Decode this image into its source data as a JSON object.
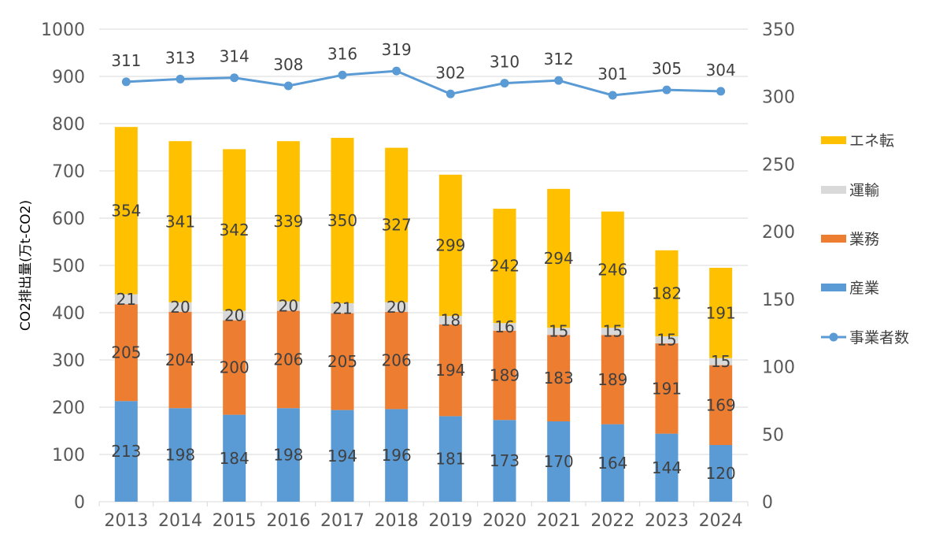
{
  "chart_data": {
    "type": "bar",
    "stacked": true,
    "categories": [
      "2013",
      "2014",
      "2015",
      "2016",
      "2017",
      "2018",
      "2019",
      "2020",
      "2021",
      "2022",
      "2023",
      "2024"
    ],
    "series": [
      {
        "name": "産業",
        "axis": "left",
        "color": "#5b9bd5",
        "values": [
          213,
          198,
          184,
          198,
          194,
          196,
          181,
          173,
          170,
          164,
          144,
          120
        ]
      },
      {
        "name": "業務",
        "axis": "left",
        "color": "#ed7d31",
        "values": [
          205,
          204,
          200,
          206,
          205,
          206,
          194,
          189,
          183,
          189,
          191,
          169
        ]
      },
      {
        "name": "運輸",
        "axis": "left",
        "color": "#d9d9d9",
        "values": [
          21,
          20,
          20,
          20,
          21,
          20,
          18,
          16,
          15,
          15,
          15,
          15
        ]
      },
      {
        "name": "エネ転",
        "axis": "left",
        "color": "#ffc000",
        "values": [
          354,
          341,
          342,
          339,
          350,
          327,
          299,
          242,
          294,
          246,
          182,
          191
        ]
      }
    ],
    "line_series": {
      "name": "事業者数",
      "axis": "right",
      "color": "#5b9bd5",
      "type": "line",
      "values": [
        311,
        313,
        314,
        308,
        316,
        319,
        302,
        310,
        312,
        301,
        305,
        304
      ]
    },
    "ylabel": "CO2排出量(万t-CO2)",
    "ylim": [
      0,
      1000
    ],
    "y_ticks": [
      "1000",
      "900",
      "800",
      "700",
      "600",
      "500",
      "400",
      "300",
      "200",
      "100",
      "0"
    ],
    "y2lim": [
      0,
      350
    ],
    "y2_ticks": [
      "350",
      "300",
      "250",
      "200",
      "150",
      "100",
      "50",
      "0"
    ],
    "legend": [
      "エネ転",
      "運輸",
      "業務",
      "産業",
      "事業者数"
    ],
    "legend_position": "right",
    "grid": true
  }
}
